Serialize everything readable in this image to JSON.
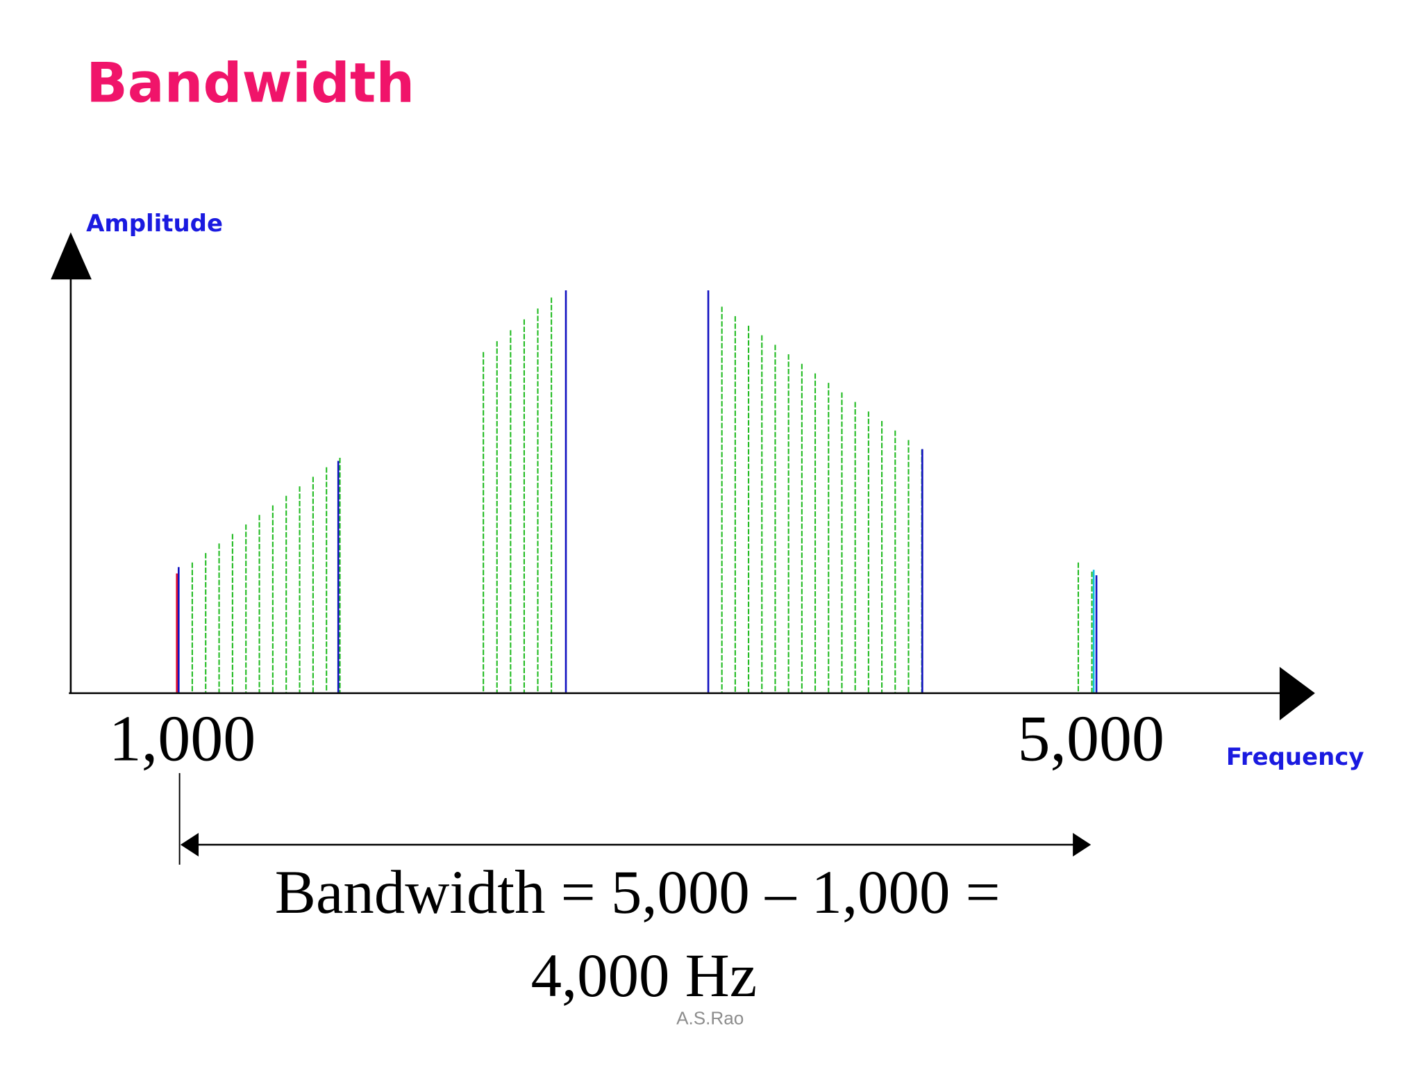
{
  "header": {
    "title": "Bandwidth"
  },
  "diagram": {
    "y_axis_label": "Amplitude",
    "x_axis_label": "Frequency",
    "low_label": "1,000",
    "high_label": "5,000",
    "equation_line1": "Bandwidth = 5,000 – 1,000 =",
    "equation_line2": "4,000 Hz"
  },
  "footer": {
    "author": "A.S.Rao"
  }
}
